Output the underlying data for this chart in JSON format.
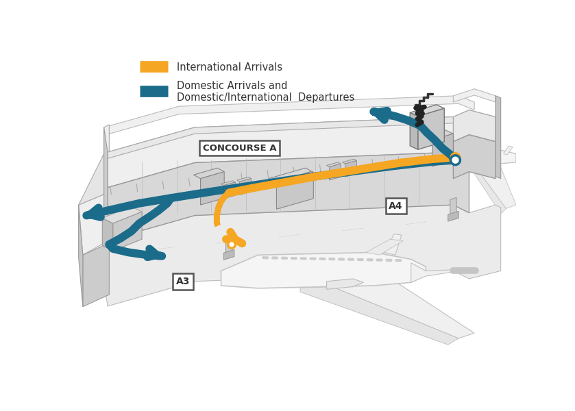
{
  "background_color": "#ffffff",
  "legend_items": [
    {
      "color": "#F5A623",
      "label": "International Arrivals"
    },
    {
      "color": "#1B6B8A",
      "label": "Domestic Arrivals and\nDomestic/International  Departures"
    }
  ],
  "orange": "#F5A623",
  "teal": "#1B6B8A",
  "black_path": "#2a2a2a",
  "label_a3": "A3",
  "label_a4": "A4",
  "label_concourse": "CONCOURSE A",
  "roof_color": "#F2F2F2",
  "wall_color_light": "#E0E0E0",
  "wall_color_dark": "#C8C8C8",
  "wall_color_mid": "#D5D5D5",
  "apron_color": "#EBEBEB",
  "detail_color": "#B0B0B0",
  "grid_color": "#CCCCCC",
  "outline_color": "#999999",
  "aircraft_fill": "#F4F4F4",
  "aircraft_edge": "#C0C0C0"
}
